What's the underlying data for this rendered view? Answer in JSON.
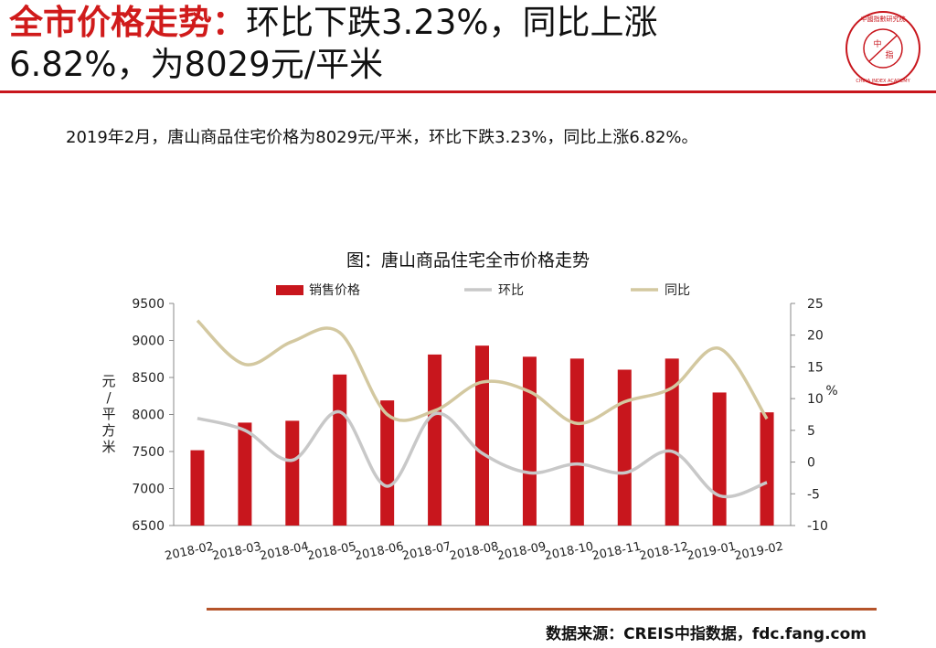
{
  "header": {
    "title_highlight": "全市价格走势：",
    "title_line1_rest": "环比下跌3.23%，同比上涨",
    "title_line2": "6.82%，为8029元/平米",
    "logo_text_top": "中國指數研究院",
    "logo_text_center_1": "中",
    "logo_text_center_2": "指",
    "logo_text_bottom": "CHINA INDEX ACADEMY"
  },
  "summary": "2019年2月，唐山商品住宅价格为8029元/平米，环比下跌3.23%，同比上涨6.82%。",
  "source": "数据来源：CREIS中指数据，fdc.fang.com",
  "colors": {
    "accent": "#c8161d",
    "bar": "#c8161d",
    "mom_line": "#c8c8c8",
    "yoy_line": "#d3c8a0",
    "bottom_rule": "#b5542a"
  },
  "chart_data": {
    "type": "bar",
    "title": "图：唐山商品住宅全市价格走势",
    "categories": [
      "2018-02",
      "2018-03",
      "2018-04",
      "2018-05",
      "2018-06",
      "2018-07",
      "2018-08",
      "2018-09",
      "2018-10",
      "2018-11",
      "2018-12",
      "2019-01",
      "2019-02"
    ],
    "series": [
      {
        "name": "销售价格",
        "type": "bar",
        "axis": "left",
        "values": [
          7517,
          7890,
          7915,
          8540,
          8190,
          8810,
          8930,
          8780,
          8755,
          8605,
          8755,
          8297,
          8029
        ]
      },
      {
        "name": "环比",
        "type": "line",
        "axis": "right",
        "values": [
          6.9,
          5.0,
          0.3,
          7.9,
          -3.8,
          7.6,
          1.4,
          -1.7,
          -0.3,
          -1.7,
          1.7,
          -5.3,
          -3.23
        ]
      },
      {
        "name": "同比",
        "type": "line",
        "axis": "right",
        "values": [
          22.3,
          15.4,
          19.0,
          20.4,
          7.5,
          8.1,
          12.6,
          11.1,
          6.1,
          9.5,
          11.7,
          17.9,
          6.82
        ]
      }
    ],
    "ylabel": "元/平方米",
    "ylabel_right": "%",
    "ylim": [
      6500,
      9500
    ],
    "y_ticks": [
      6500,
      7000,
      7500,
      8000,
      8500,
      9000,
      9500
    ],
    "y2lim": [
      -10,
      25
    ],
    "y2_ticks": [
      -10,
      -5,
      0,
      5,
      10,
      15,
      20,
      25
    ],
    "legend_position": "top"
  }
}
